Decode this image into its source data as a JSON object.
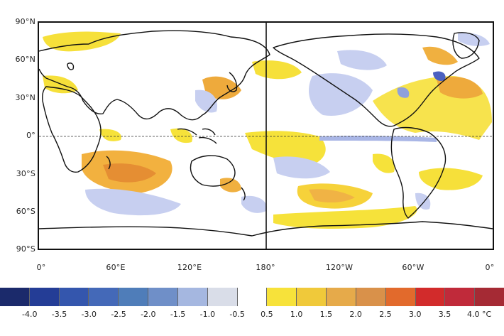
{
  "map": {
    "lat_labels": [
      "90°N",
      "60°N",
      "30°N",
      "0°",
      "30°S",
      "60°S",
      "90°S"
    ],
    "lon_labels": [
      "0°",
      "60°E",
      "120°E",
      "180°",
      "120°W",
      "60°W",
      "0°"
    ],
    "equator_line": true,
    "dateline_line": true
  },
  "colorbar": {
    "colors": [
      "#1b2a6b",
      "#243d96",
      "#3456ad",
      "#4469b8",
      "#4f7db9",
      "#6f8fc8",
      "#a5b7e0",
      "#d9dde8",
      "#ffffff",
      "#f7e23a",
      "#f0c93a",
      "#e6aa4a",
      "#d9914a",
      "#e26a2c",
      "#d22b2b",
      "#c02a3a",
      "#a52a34"
    ],
    "labels": [
      "-4.0",
      "-3.5",
      "-3.0",
      "-2.5",
      "-2.0",
      "-1.5",
      "-1.0",
      "-0.5",
      "0.5",
      "1.0",
      "1.5",
      "2.0",
      "2.5",
      "3.0",
      "3.5",
      "4.0 °C"
    ],
    "unit": "°C"
  }
}
